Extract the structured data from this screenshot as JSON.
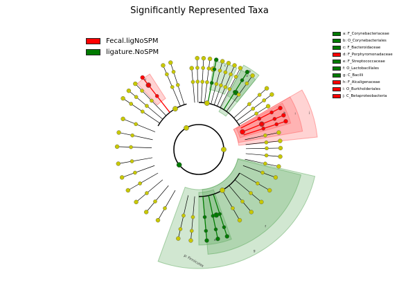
{
  "title": "Significantly Represented Taxa",
  "colors": {
    "fecal": "#ff0000",
    "ligature": "#007a00",
    "neutral": "#c8c800",
    "fecal_shade": "#ff6060",
    "ligature_shade": "#5aa85a"
  },
  "legend": [
    {
      "label": "Fecal.ligNoSPM",
      "color": "#ff0000"
    },
    {
      "label": "ligature.NoSPM",
      "color": "#007a00"
    }
  ],
  "clade_legend": [
    {
      "label": "a: F_Corynebacteriaceae",
      "color": "#007a00"
    },
    {
      "label": "b: O_Corynebacteriales",
      "color": "#007a00"
    },
    {
      "label": "c: F_Bacteroidaceae",
      "color": "#007a00"
    },
    {
      "label": "d: F_Porphyromonadaceae",
      "color": "#ff0000"
    },
    {
      "label": "e: F_Streptococcaceae",
      "color": "#007a00"
    },
    {
      "label": "f: O_Lactobacillales",
      "color": "#007a00"
    },
    {
      "label": "g: C_Bacilli",
      "color": "#007a00"
    },
    {
      "label": "h: F_Alcaligenaceae",
      "color": "#ff0000"
    },
    {
      "label": "i: O_Burkholderiales",
      "color": "#ff0000"
    },
    {
      "label": "j: C_Betaproteobacteria",
      "color": "#ff0000"
    }
  ],
  "chart_data": {
    "type": "cladogram",
    "title": "Significantly Represented Taxa",
    "groups": [
      "Fecal.ligNoSPM",
      "ligature.NoSPM"
    ],
    "significant_clades": [
      {
        "letter": "a",
        "rank": "Family",
        "name": "Corynebacteriaceae",
        "enriched_in": "ligature.NoSPM"
      },
      {
        "letter": "b",
        "rank": "Order",
        "name": "Corynebacteriales",
        "enriched_in": "ligature.NoSPM"
      },
      {
        "letter": "c",
        "rank": "Family",
        "name": "Bacteroidaceae",
        "enriched_in": "ligature.NoSPM"
      },
      {
        "letter": "d",
        "rank": "Family",
        "name": "Porphyromonadaceae",
        "enriched_in": "Fecal.ligNoSPM"
      },
      {
        "letter": "e",
        "rank": "Family",
        "name": "Streptococcaceae",
        "enriched_in": "ligature.NoSPM"
      },
      {
        "letter": "f",
        "rank": "Order",
        "name": "Lactobacillales",
        "enriched_in": "ligature.NoSPM"
      },
      {
        "letter": "g",
        "rank": "Class",
        "name": "Bacilli",
        "enriched_in": "ligature.NoSPM"
      },
      {
        "letter": "h",
        "rank": "Family",
        "name": "Alcaligenaceae",
        "enriched_in": "Fecal.ligNoSPM"
      },
      {
        "letter": "i",
        "rank": "Order",
        "name": "Burkholderiales",
        "enriched_in": "Fecal.ligNoSPM"
      },
      {
        "letter": "j",
        "rank": "Class",
        "name": "Betaproteobacteria",
        "enriched_in": "Fecal.ligNoSPM"
      }
    ],
    "phylum_label": "p: Firmicutes",
    "highlights": [
      {
        "letter": "g",
        "start": 103,
        "end": 200,
        "level": 1,
        "group": "ligature.NoSPM"
      },
      {
        "letter": "f",
        "start": 104,
        "end": 175,
        "level": 2,
        "group": "ligature.NoSPM"
      },
      {
        "letter": "e",
        "start": 160,
        "end": 180,
        "level": 3,
        "group": "ligature.NoSPM"
      },
      {
        "letter": "c",
        "start": 10,
        "end": 25,
        "level": 4,
        "group": "ligature.NoSPM"
      },
      {
        "letter": "b",
        "start": 28,
        "end": 39,
        "level": 3,
        "group": "ligature.NoSPM"
      },
      {
        "letter": "a",
        "start": 28,
        "end": 39,
        "level": 4,
        "group": "ligature.NoSPM"
      },
      {
        "letter": "d",
        "start": 317,
        "end": 327,
        "level": 4,
        "group": "Fecal.ligNoSPM"
      },
      {
        "letter": "j",
        "start": 60,
        "end": 84,
        "level": 1,
        "group": "Fecal.ligNoSPM"
      },
      {
        "letter": "i",
        "start": 60,
        "end": 80,
        "level": 2,
        "group": "Fecal.ligNoSPM"
      },
      {
        "letter": "h",
        "start": 61,
        "end": 74,
        "level": 3,
        "group": "Fecal.ligNoSPM"
      }
    ],
    "lineages": [
      {
        "angle": 355,
        "depth": 4,
        "group": "neutral"
      },
      {
        "angle": 359,
        "depth": 5,
        "group": "neutral"
      },
      {
        "angle": 3,
        "depth": 5,
        "group": "neutral"
      },
      {
        "angle": 7,
        "depth": 5,
        "group": "neutral"
      },
      {
        "angle": 11,
        "depth": 5,
        "group": "ligature.NoSPM"
      },
      {
        "angle": 15,
        "depth": 5,
        "group": "neutral"
      },
      {
        "angle": 19,
        "depth": 5,
        "group": "neutral"
      },
      {
        "angle": 23,
        "depth": 5,
        "group": "neutral"
      },
      {
        "angle": 27,
        "depth": 5,
        "group": "neutral"
      },
      {
        "angle": 32,
        "depth": 5,
        "group": "ligature.NoSPM"
      },
      {
        "angle": 36,
        "depth": 5,
        "group": "neutral"
      },
      {
        "angle": 342,
        "depth": 5,
        "group": "neutral"
      },
      {
        "angle": 337,
        "depth": 5,
        "group": "neutral"
      },
      {
        "angle": 322,
        "depth": 5,
        "group": "Fecal.ligNoSPM"
      },
      {
        "angle": 316,
        "depth": 5,
        "group": "neutral"
      },
      {
        "angle": 310,
        "depth": 5,
        "group": "neutral"
      },
      {
        "angle": 304,
        "depth": 5,
        "group": "neutral"
      },
      {
        "angle": 48,
        "depth": 5,
        "group": "neutral"
      },
      {
        "angle": 53,
        "depth": 5,
        "group": "neutral"
      },
      {
        "angle": 58,
        "depth": 4,
        "group": "neutral"
      },
      {
        "angle": 63,
        "depth": 5,
        "group": "Fecal.ligNoSPM"
      },
      {
        "angle": 68,
        "depth": 5,
        "group": "Fecal.ligNoSPM"
      },
      {
        "angle": 72,
        "depth": 5,
        "group": "Fecal.ligNoSPM"
      },
      {
        "angle": 78,
        "depth": 4,
        "group": "neutral"
      },
      {
        "angle": 84,
        "depth": 4,
        "group": "neutral"
      },
      {
        "angle": 89,
        "depth": 4,
        "group": "neutral"
      },
      {
        "angle": 95,
        "depth": 4,
        "group": "neutral"
      },
      {
        "angle": 102,
        "depth": 4,
        "group": "neutral"
      },
      {
        "angle": 110,
        "depth": 4,
        "group": "neutral"
      },
      {
        "angle": 120,
        "depth": 4,
        "group": "neutral"
      },
      {
        "angle": 130,
        "depth": 4,
        "group": "neutral"
      },
      {
        "angle": 140,
        "depth": 4,
        "group": "neutral"
      },
      {
        "angle": 150,
        "depth": 4,
        "group": "neutral"
      },
      {
        "angle": 162,
        "depth": 5,
        "group": "ligature.NoSPM"
      },
      {
        "angle": 168,
        "depth": 5,
        "group": "ligature.NoSPM"
      },
      {
        "angle": 175,
        "depth": 5,
        "group": "ligature.NoSPM"
      },
      {
        "angle": 185,
        "depth": 5,
        "group": "neutral"
      },
      {
        "angle": 193,
        "depth": 5,
        "group": "neutral"
      },
      {
        "angle": 210,
        "depth": 4,
        "group": "neutral"
      },
      {
        "angle": 220,
        "depth": 4,
        "group": "neutral"
      },
      {
        "angle": 230,
        "depth": 4,
        "group": "neutral"
      },
      {
        "angle": 240,
        "depth": 4,
        "group": "neutral"
      },
      {
        "angle": 250,
        "depth": 4,
        "group": "neutral"
      },
      {
        "angle": 260,
        "depth": 4,
        "group": "neutral"
      },
      {
        "angle": 272,
        "depth": 4,
        "group": "neutral"
      },
      {
        "angle": 282,
        "depth": 4,
        "group": "neutral"
      },
      {
        "angle": 292,
        "depth": 4,
        "group": "neutral"
      }
    ],
    "inner_nodes": [
      {
        "angle": 90,
        "depth": 1,
        "group": "neutral"
      },
      {
        "angle": 232,
        "depth": 1,
        "group": "ligature.NoSPM"
      },
      {
        "angle": 330,
        "depth": 1,
        "group": "neutral"
      },
      {
        "angle": 10,
        "depth": 2,
        "group": "neutral"
      },
      {
        "angle": 150,
        "depth": 2,
        "group": "neutral"
      },
      {
        "angle": 330,
        "depth": 2,
        "group": "neutral"
      },
      {
        "angle": 165,
        "depth": 3,
        "group": "ligature.NoSPM"
      },
      {
        "angle": 33,
        "depth": 3,
        "group": "ligature.NoSPM"
      },
      {
        "angle": 68,
        "depth": 2,
        "group": "Fecal.ligNoSPM"
      },
      {
        "angle": 68,
        "depth": 3,
        "group": "Fecal.ligNoSPM"
      },
      {
        "angle": 322,
        "depth": 4,
        "group": "Fecal.ligNoSPM"
      },
      {
        "angle": 10,
        "depth": 4,
        "group": "neutral"
      }
    ]
  }
}
